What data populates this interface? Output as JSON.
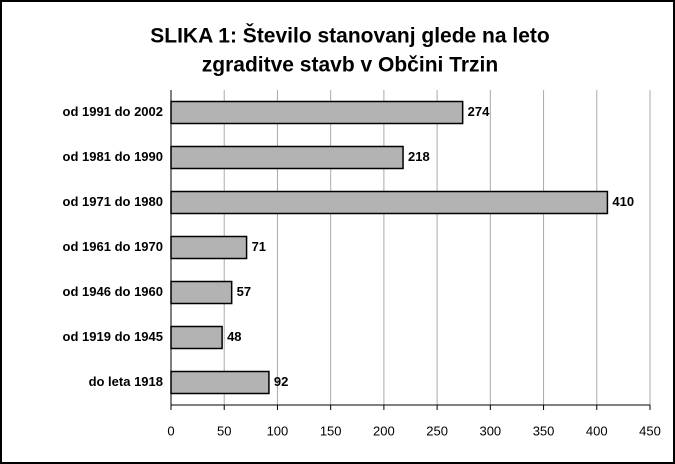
{
  "chart_data": {
    "type": "bar",
    "orientation": "horizontal",
    "title": [
      "SLIKA 1: Število stanovanj glede na leto",
      "zgraditve stavb v Občini Trzin"
    ],
    "categories": [
      "od 1991 do 2002",
      "od 1981 do 1990",
      "od 1971 do 1980",
      "od 1961 do 1970",
      "od 1946 do 1960",
      "od 1919 do 1945",
      "do leta 1918"
    ],
    "values": [
      274,
      218,
      410,
      71,
      57,
      48,
      92
    ],
    "color": "#b3b3b3",
    "xlim": [
      0,
      450
    ],
    "xticks": [
      0,
      50,
      100,
      150,
      200,
      250,
      300,
      350,
      400,
      450
    ],
    "grid": true
  }
}
